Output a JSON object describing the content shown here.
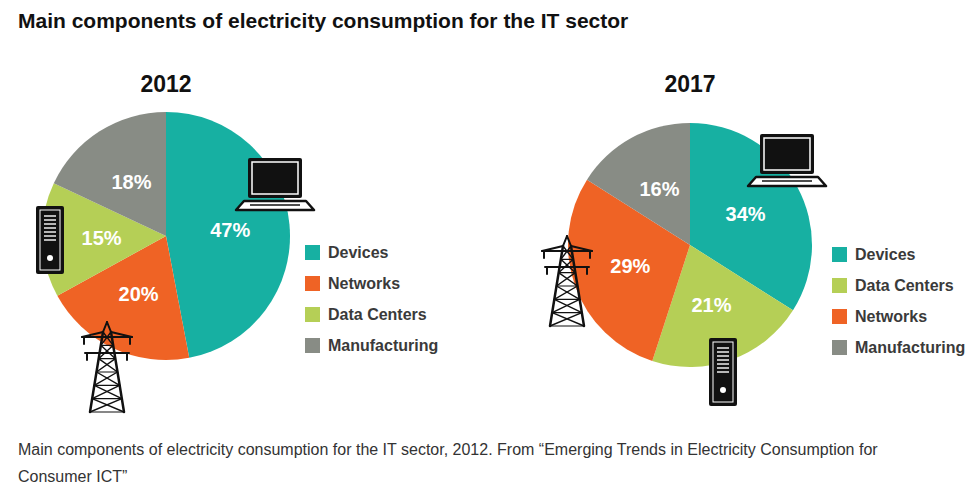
{
  "header": {
    "title": "Main components of electricity consumption for the IT sector"
  },
  "chart_data": [
    {
      "type": "pie",
      "title": "2012",
      "categories": [
        "Devices",
        "Networks",
        "Data Centers",
        "Manufacturing"
      ],
      "values": [
        47,
        20,
        15,
        18
      ],
      "value_labels": [
        "47%",
        "20%",
        "15%",
        "18%"
      ],
      "colors": [
        "#17b0a2",
        "#ef6325",
        "#b5cf56",
        "#888c85"
      ],
      "data_labels": true,
      "legend": "right"
    },
    {
      "type": "pie",
      "title": "2017",
      "categories": [
        "Devices",
        "Data Centers",
        "Networks",
        "Manufacturing"
      ],
      "values": [
        34,
        21,
        29,
        16
      ],
      "value_labels": [
        "34%",
        "21%",
        "29%",
        "16%"
      ],
      "colors": [
        "#17b0a2",
        "#b5cf56",
        "#ef6325",
        "#888c85"
      ],
      "data_labels": true,
      "legend": "right"
    }
  ],
  "caption": "Main components of electricity consumption for the IT sector, 2012. From “Emerging Trends in Electricity Consumption for Consumer ICT”"
}
